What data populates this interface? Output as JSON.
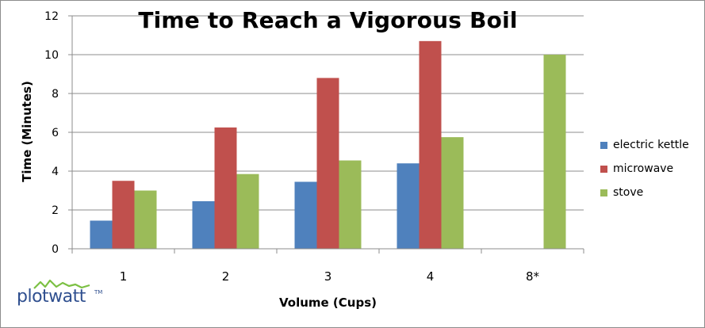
{
  "chart_data": {
    "type": "bar",
    "title": "Time to Reach a Vigorous Boil",
    "xlabel": "Volume (Cups)",
    "ylabel": "Time (Minutes)",
    "categories": [
      "1",
      "2",
      "3",
      "4",
      "8*"
    ],
    "series": [
      {
        "name": "electric kettle",
        "color": "#4f81bd",
        "values": [
          1.45,
          2.45,
          3.45,
          4.4,
          null
        ]
      },
      {
        "name": "microwave",
        "color": "#c0504d",
        "values": [
          3.5,
          6.25,
          8.8,
          10.7,
          null
        ]
      },
      {
        "name": "stove",
        "color": "#9bbb59",
        "values": [
          3.0,
          3.85,
          4.55,
          5.75,
          10.0
        ]
      }
    ],
    "ylim": [
      0,
      12
    ],
    "yticks": [
      "0",
      "2",
      "4",
      "6",
      "8",
      "10",
      "12"
    ],
    "grid": true,
    "legend": "right"
  },
  "branding": {
    "logo_text": "plotwatt",
    "logo_tm": "TM",
    "logo_color": "#2f4f8f",
    "wave_color": "#7bc043"
  }
}
